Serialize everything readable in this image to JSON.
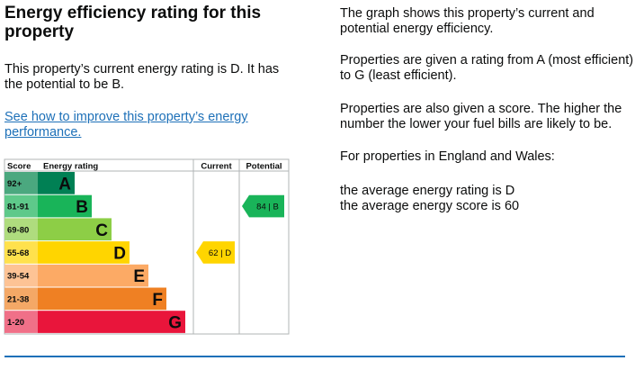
{
  "heading": "Energy efficiency rating for this property",
  "current_text": "This property’s current energy rating is D. It has the potential to be B.",
  "improve_link": "See how to improve this property’s energy performance.",
  "info": {
    "graph_text": "The graph shows this property’s current and potential energy efficiency.",
    "rating_text": "Properties are given a rating from A (most efficient) to G (least efficient).",
    "score_text": "Properties are also given a score. The higher the number the lower your fuel bills are likely to be.",
    "region_text": "For properties in England and Wales:",
    "avg_rating": "the average energy rating is D",
    "avg_score": "the average energy score is 60"
  },
  "chart_data": {
    "type": "table",
    "headers": {
      "score": "Score",
      "rating": "Energy rating",
      "current": "Current",
      "potential": "Potential"
    },
    "bands": [
      {
        "letter": "A",
        "range": "92+",
        "color": "#008054",
        "range_color": "#4ba87f"
      },
      {
        "letter": "B",
        "range": "81-91",
        "color": "#19b459",
        "range_color": "#5ec98a"
      },
      {
        "letter": "C",
        "range": "69-80",
        "color": "#8dce46",
        "range_color": "#afdc7e"
      },
      {
        "letter": "D",
        "range": "55-68",
        "color": "#ffd500",
        "range_color": "#ffe14d"
      },
      {
        "letter": "E",
        "range": "39-54",
        "color": "#fcaa65",
        "range_color": "#fdc395"
      },
      {
        "letter": "F",
        "range": "21-38",
        "color": "#ef8023",
        "range_color": "#f4a866"
      },
      {
        "letter": "G",
        "range": "1-20",
        "color": "#e9153b",
        "range_color": "#f07088"
      }
    ],
    "current": {
      "score": 62,
      "letter": "D",
      "label": "62 | D",
      "color": "#ffd500"
    },
    "potential": {
      "score": 84,
      "letter": "B",
      "label": "84 | B",
      "color": "#19b459"
    }
  }
}
